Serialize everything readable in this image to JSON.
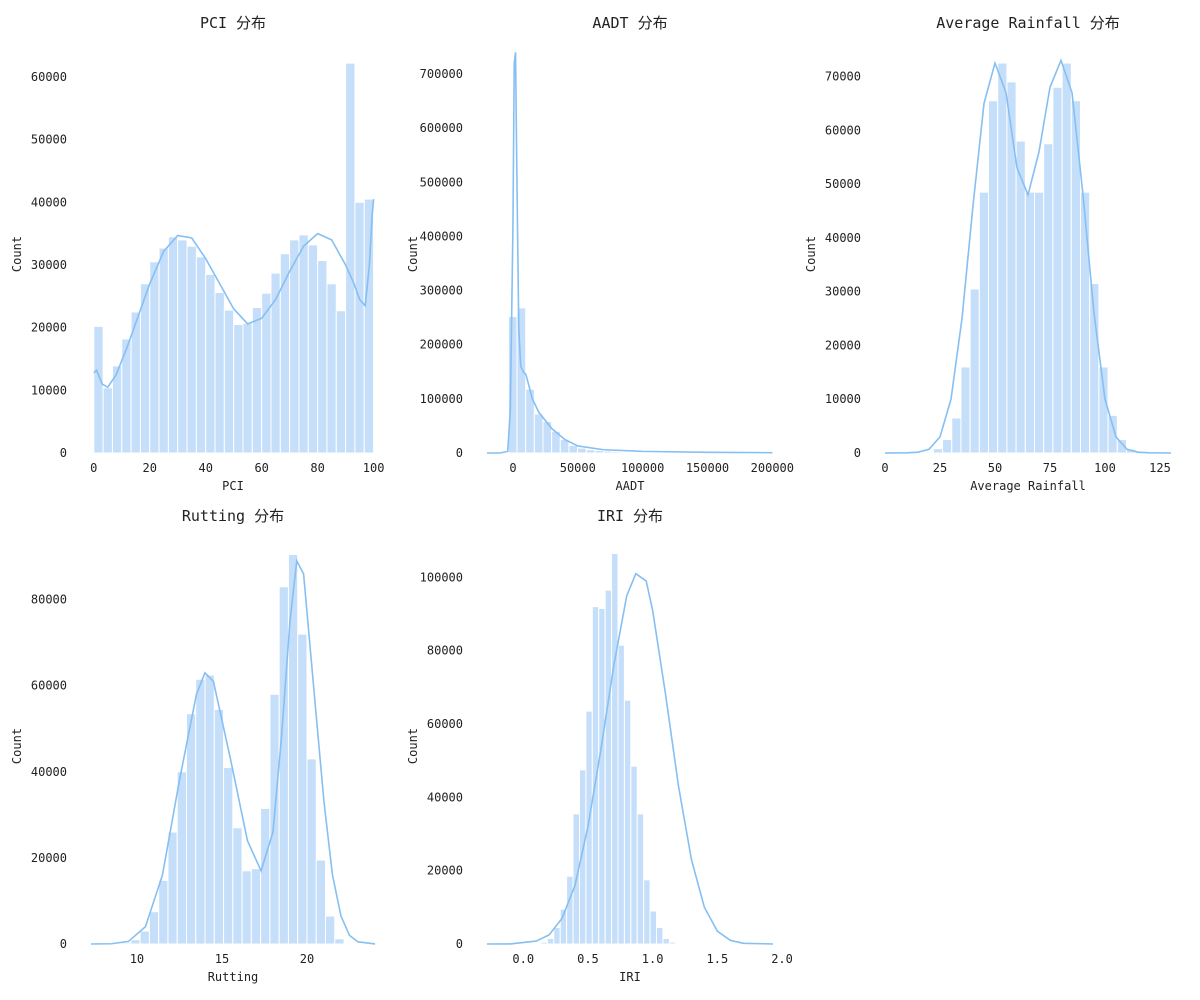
{
  "chart_data": [
    {
      "id": "pci",
      "type": "bar",
      "subtype": "histogram-with-kde",
      "title": "PCI 分布",
      "xlabel": "PCI",
      "ylabel": "Count",
      "xlim": [
        -1,
        100.5
      ],
      "ylim": [
        0,
        63500
      ],
      "xticks": [
        0,
        20,
        40,
        60,
        80,
        100
      ],
      "xtick_labels": [
        "0",
        "20",
        "40",
        "60",
        "80",
        "100"
      ],
      "yticks": [
        0,
        10000,
        20000,
        30000,
        40000,
        50000,
        60000
      ],
      "ytick_labels": [
        "0",
        "10000",
        "20000",
        "30000",
        "40000",
        "50000",
        "60000"
      ],
      "bin_start": 0,
      "bin_width": 3.333,
      "values": [
        20200,
        10400,
        13900,
        18200,
        22500,
        27000,
        30500,
        32700,
        34500,
        34000,
        33000,
        31300,
        28500,
        25600,
        22800,
        20500,
        20700,
        23200,
        25500,
        28700,
        31800,
        34000,
        34800,
        33200,
        30700,
        27000,
        22700,
        62200,
        40000,
        40500
      ],
      "kde": {
        "x": [
          0,
          1,
          3,
          5,
          8,
          12,
          16,
          20,
          25,
          30,
          35,
          40,
          45,
          50,
          55,
          60,
          65,
          70,
          75,
          80,
          85,
          90,
          93,
          95,
          97,
          98.5,
          99.5,
          100
        ],
        "y": [
          12800,
          13200,
          11000,
          10500,
          12500,
          17000,
          22000,
          27000,
          32200,
          34700,
          34300,
          31000,
          27000,
          23000,
          20600,
          21500,
          24500,
          29000,
          33000,
          35000,
          34000,
          30000,
          27000,
          24500,
          23500,
          30000,
          38000,
          40500
        ]
      }
    },
    {
      "id": "aadt",
      "type": "bar",
      "subtype": "histogram-with-kde",
      "title": "AADT 分布",
      "xlabel": "AADT",
      "ylabel": "Count",
      "xlim": [
        -20000,
        200500
      ],
      "ylim": [
        0,
        735000
      ],
      "xticks": [
        0,
        50000,
        100000,
        150000,
        200000
      ],
      "xtick_labels": [
        "0",
        "50000",
        "100000",
        "150000",
        "200000"
      ],
      "yticks": [
        0,
        100000,
        200000,
        300000,
        400000,
        500000,
        600000,
        700000
      ],
      "ytick_labels": [
        "0",
        "100000",
        "200000",
        "300000",
        "400000",
        "500000",
        "600000",
        "700000"
      ],
      "bin_start": -3500,
      "bin_width": 6667,
      "values": [
        252000,
        268000,
        118000,
        72000,
        58000,
        40000,
        25000,
        14000,
        9000,
        6000,
        4500,
        3500,
        2500,
        2000,
        1600,
        1300,
        1100,
        900,
        800,
        700,
        600,
        550,
        500,
        450,
        400,
        350,
        300,
        300,
        250,
        250
      ],
      "kde": {
        "x": [
          -20000,
          -10000,
          -4000,
          -2000,
          0,
          1000,
          2000,
          3000,
          4500,
          6000,
          8000,
          10000,
          15000,
          20000,
          30000,
          40000,
          50000,
          70000,
          100000,
          150000,
          200000
        ],
        "y": [
          0,
          0,
          3000,
          80000,
          420000,
          720000,
          740000,
          520000,
          230000,
          160000,
          150000,
          145000,
          100000,
          75000,
          45000,
          25000,
          13000,
          6000,
          3000,
          1200,
          600
        ]
      }
    },
    {
      "id": "rainfall",
      "type": "bar",
      "subtype": "histogram-with-kde",
      "title": "Average Rainfall 分布",
      "xlabel": "Average Rainfall",
      "ylabel": "Count",
      "xlim": [
        0,
        130
      ],
      "ylim": [
        0,
        74000
      ],
      "xticks": [
        0,
        25,
        50,
        75,
        100,
        125
      ],
      "xtick_labels": [
        "0",
        "25",
        "50",
        "75",
        "100",
        "125"
      ],
      "yticks": [
        0,
        10000,
        20000,
        30000,
        40000,
        50000,
        60000,
        70000
      ],
      "ytick_labels": [
        "0",
        "10000",
        "20000",
        "30000",
        "40000",
        "50000",
        "60000",
        "70000"
      ],
      "bin_start": 17.8,
      "bin_width": 4.18,
      "values": [
        200,
        800,
        2500,
        6500,
        16000,
        30500,
        48500,
        65500,
        72500,
        69000,
        58000,
        48500,
        48500,
        57500,
        68000,
        72500,
        65500,
        48500,
        31500,
        16000,
        7000,
        2500,
        700,
        200
      ],
      "kde": {
        "x": [
          0,
          10,
          15,
          20,
          25,
          30,
          35,
          40,
          45,
          50,
          55,
          60,
          65,
          70,
          75,
          80,
          85,
          90,
          95,
          100,
          105,
          110,
          115,
          120,
          130
        ],
        "y": [
          0,
          30,
          150,
          700,
          3000,
          10000,
          25000,
          46000,
          65000,
          72500,
          67000,
          53000,
          48000,
          56000,
          68000,
          73000,
          67000,
          48000,
          26000,
          10000,
          3000,
          700,
          150,
          30,
          0
        ]
      }
    },
    {
      "id": "rutting",
      "type": "bar",
      "subtype": "histogram-with-kde",
      "title": "Rutting 分布",
      "xlabel": "Rutting",
      "ylabel": "Count",
      "xlim": [
        7.3,
        24
      ],
      "ylim": [
        0,
        92000
      ],
      "xticks": [
        10,
        15,
        20
      ],
      "xtick_labels": [
        "10",
        "15",
        "20"
      ],
      "yticks": [
        0,
        20000,
        40000,
        60000,
        80000
      ],
      "ytick_labels": [
        "0",
        "20000",
        "40000",
        "60000",
        "80000"
      ],
      "bin_start": 9.1,
      "bin_width": 0.545,
      "values": [
        300,
        1000,
        3000,
        7500,
        14800,
        26000,
        40000,
        53500,
        61500,
        62500,
        54500,
        41000,
        27000,
        17000,
        17500,
        31500,
        58000,
        83000,
        90500,
        72000,
        43000,
        19500,
        6500,
        1200
      ],
      "kde": {
        "x": [
          7.3,
          8.5,
          9.5,
          10.5,
          11.5,
          12.5,
          13.5,
          14,
          14.5,
          15.5,
          16.5,
          17.3,
          18,
          18.5,
          19,
          19.4,
          19.8,
          20.5,
          21,
          21.5,
          22,
          22.5,
          23,
          24
        ],
        "y": [
          0,
          60,
          600,
          4000,
          16000,
          38000,
          58000,
          63000,
          61000,
          43000,
          24000,
          17000,
          26000,
          48000,
          75000,
          89000,
          86000,
          55000,
          33000,
          16000,
          6500,
          2000,
          500,
          20
        ]
      }
    },
    {
      "id": "iri",
      "type": "bar",
      "subtype": "histogram-with-kde",
      "title": "IRI 分布",
      "xlabel": "IRI",
      "ylabel": "Count",
      "xlim": [
        -0.28,
        1.93
      ],
      "ylim": [
        0,
        108000
      ],
      "xticks": [
        0.0,
        0.5,
        1.0,
        1.5,
        2.0
      ],
      "xtick_labels": [
        "0.0",
        "0.5",
        "1.0",
        "1.5",
        "2.0"
      ],
      "yticks": [
        0,
        20000,
        40000,
        60000,
        80000,
        100000
      ],
      "ytick_labels": [
        "0",
        "20000",
        "40000",
        "60000",
        "80000",
        "100000"
      ],
      "bin_start": 0.137,
      "bin_width": 0.0496,
      "values": [
        500,
        1500,
        4500,
        9500,
        18500,
        35500,
        47500,
        63500,
        92000,
        91500,
        96500,
        106500,
        81500,
        66500,
        48500,
        35500,
        17500,
        9000,
        4500,
        1500,
        500
      ],
      "kde": {
        "x": [
          -0.28,
          -0.1,
          0.1,
          0.2,
          0.3,
          0.4,
          0.5,
          0.6,
          0.7,
          0.8,
          0.87,
          0.95,
          1.0,
          1.1,
          1.2,
          1.3,
          1.4,
          1.5,
          1.6,
          1.7,
          1.93
        ],
        "y": [
          0,
          30,
          800,
          2500,
          7000,
          16000,
          32000,
          53000,
          76000,
          95000,
          101000,
          99000,
          91000,
          68000,
          43000,
          23000,
          10000,
          3500,
          1000,
          200,
          0
        ]
      }
    }
  ],
  "panels": [
    {
      "id": "pci",
      "box": {
        "left": 91,
        "right": 375,
        "top": 55,
        "bottom": 453
      }
    },
    {
      "id": "aadt",
      "box": {
        "left": 487,
        "right": 773,
        "top": 55,
        "bottom": 453
      }
    },
    {
      "id": "rainfall",
      "box": {
        "left": 885,
        "right": 1171,
        "top": 55,
        "bottom": 453
      }
    },
    {
      "id": "rutting",
      "box": {
        "left": 91,
        "right": 375,
        "top": 548,
        "bottom": 944
      }
    },
    {
      "id": "iri",
      "box": {
        "left": 487,
        "right": 773,
        "top": 548,
        "bottom": 944
      }
    }
  ],
  "colors": {
    "bar": "#c5def9",
    "bar_edge": "#ffffff",
    "kde": "#86bff2",
    "text": "#222222"
  }
}
